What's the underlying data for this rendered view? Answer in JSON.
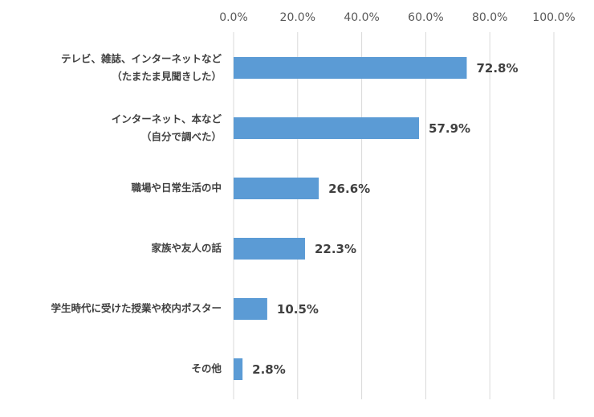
{
  "chart_data": {
    "type": "hbar",
    "categories": [
      "テレビ、雑誌、インターネットなど\n（たまたま見聞きした）",
      "インターネット、本など\n（自分で調べた）",
      "職場や日常生活の中",
      "家族や友人の話",
      "学生時代に受けた授業や校内ポスター",
      "その他"
    ],
    "values": [
      72.8,
      57.9,
      26.6,
      22.3,
      10.5,
      2.8
    ],
    "value_labels": [
      "72.8%",
      "57.9%",
      "26.6%",
      "22.3%",
      "10.5%",
      "2.8%"
    ],
    "color": "#5b9bd5",
    "xlim": [
      0,
      100
    ],
    "xticks": [
      {
        "value": 0,
        "label": "0.0%"
      },
      {
        "value": 20,
        "label": "20.0%"
      },
      {
        "value": 40,
        "label": "40.0%"
      },
      {
        "value": 60,
        "label": "60.0%"
      },
      {
        "value": 80,
        "label": "80.0%"
      },
      {
        "value": 100,
        "label": "100.0%"
      }
    ],
    "grid": true
  }
}
